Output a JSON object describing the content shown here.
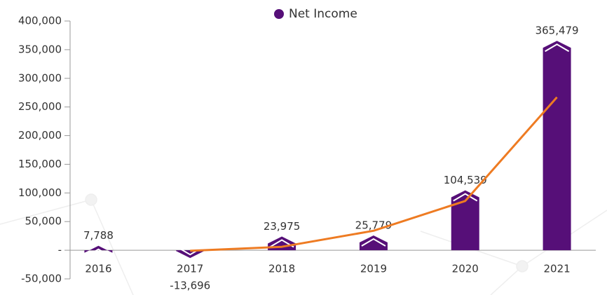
{
  "chart_data": {
    "type": "bar",
    "legend": "top",
    "categories": [
      "2016",
      "2017",
      "2018",
      "2019",
      "2020",
      "2021"
    ],
    "series": [
      {
        "name": "Net Income",
        "color": "#560f78",
        "values": [
          7788,
          -13696,
          23975,
          25779,
          104539,
          365479
        ],
        "value_labels": [
          "7,788",
          "-13,696",
          "23,975",
          "25,779",
          "104,539",
          "365,479"
        ]
      }
    ],
    "trendline": {
      "color": "#ee7b22",
      "values": [
        null,
        -1000,
        6000,
        34000,
        86000,
        267000
      ]
    },
    "ylim": [
      -50000,
      400000
    ],
    "yticks": [
      {
        "value": -50000,
        "label": "-50,000"
      },
      {
        "value": 0,
        "label": "-"
      },
      {
        "value": 50000,
        "label": "50,000"
      },
      {
        "value": 100000,
        "label": "100,000"
      },
      {
        "value": 150000,
        "label": "150,000"
      },
      {
        "value": 200000,
        "label": "200,000"
      },
      {
        "value": 250000,
        "label": "250,000"
      },
      {
        "value": 300000,
        "label": "300,000"
      },
      {
        "value": 350000,
        "label": "350,000"
      },
      {
        "value": 400000,
        "label": "400,000"
      }
    ]
  }
}
